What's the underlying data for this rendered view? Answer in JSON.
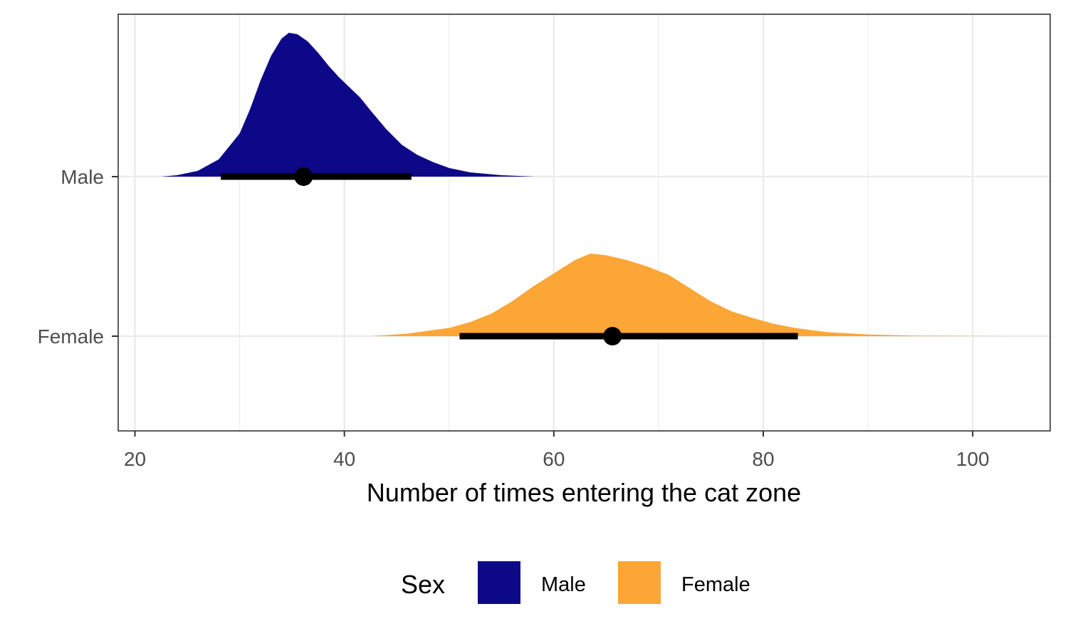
{
  "chart_data": {
    "type": "area",
    "xlabel": "Number of times entering the cat zone",
    "ylabel": "",
    "xlim": [
      18.4,
      107.4
    ],
    "x_ticks": [
      20,
      40,
      60,
      80,
      100
    ],
    "x_tick_labels": [
      "20",
      "40",
      "60",
      "80",
      "100"
    ],
    "y_categories": [
      "Male",
      "Female"
    ],
    "grid": true,
    "legend": {
      "title": "Sex",
      "position": "bottom",
      "entries": [
        {
          "label": "Male",
          "color": "#0d0887"
        },
        {
          "label": "Female",
          "color": "#fca636"
        }
      ]
    },
    "series": [
      {
        "name": "Male",
        "color": "#0d0887",
        "point": 36.1,
        "interval": [
          28.2,
          46.4
        ],
        "density_x": [
          22.5,
          24,
          26,
          28,
          30,
          31,
          32,
          33,
          34,
          34.7,
          35.5,
          36.5,
          37.5,
          38.5,
          39.5,
          40.5,
          41.5,
          42.5,
          44,
          45.5,
          47,
          48.5,
          50,
          52,
          55,
          58.2
        ],
        "density_y": [
          0,
          0.01,
          0.04,
          0.12,
          0.3,
          0.47,
          0.67,
          0.84,
          0.96,
          1.0,
          0.99,
          0.94,
          0.86,
          0.77,
          0.69,
          0.62,
          0.55,
          0.46,
          0.33,
          0.22,
          0.15,
          0.1,
          0.06,
          0.03,
          0.01,
          0
        ]
      },
      {
        "name": "Female",
        "color": "#fca636",
        "point": 65.6,
        "interval": [
          51,
          83.3
        ],
        "density_x": [
          42.5,
          46,
          50,
          52,
          54,
          56,
          58,
          60,
          62,
          63.5,
          65,
          67,
          69,
          71,
          73,
          75,
          77,
          79,
          81,
          83,
          86,
          90,
          95,
          100,
          103.5
        ],
        "density_y": [
          0,
          0.03,
          0.1,
          0.17,
          0.27,
          0.42,
          0.6,
          0.76,
          0.92,
          1.0,
          0.98,
          0.92,
          0.84,
          0.74,
          0.58,
          0.42,
          0.3,
          0.22,
          0.15,
          0.1,
          0.05,
          0.02,
          0.005,
          0.002,
          0
        ]
      }
    ]
  }
}
